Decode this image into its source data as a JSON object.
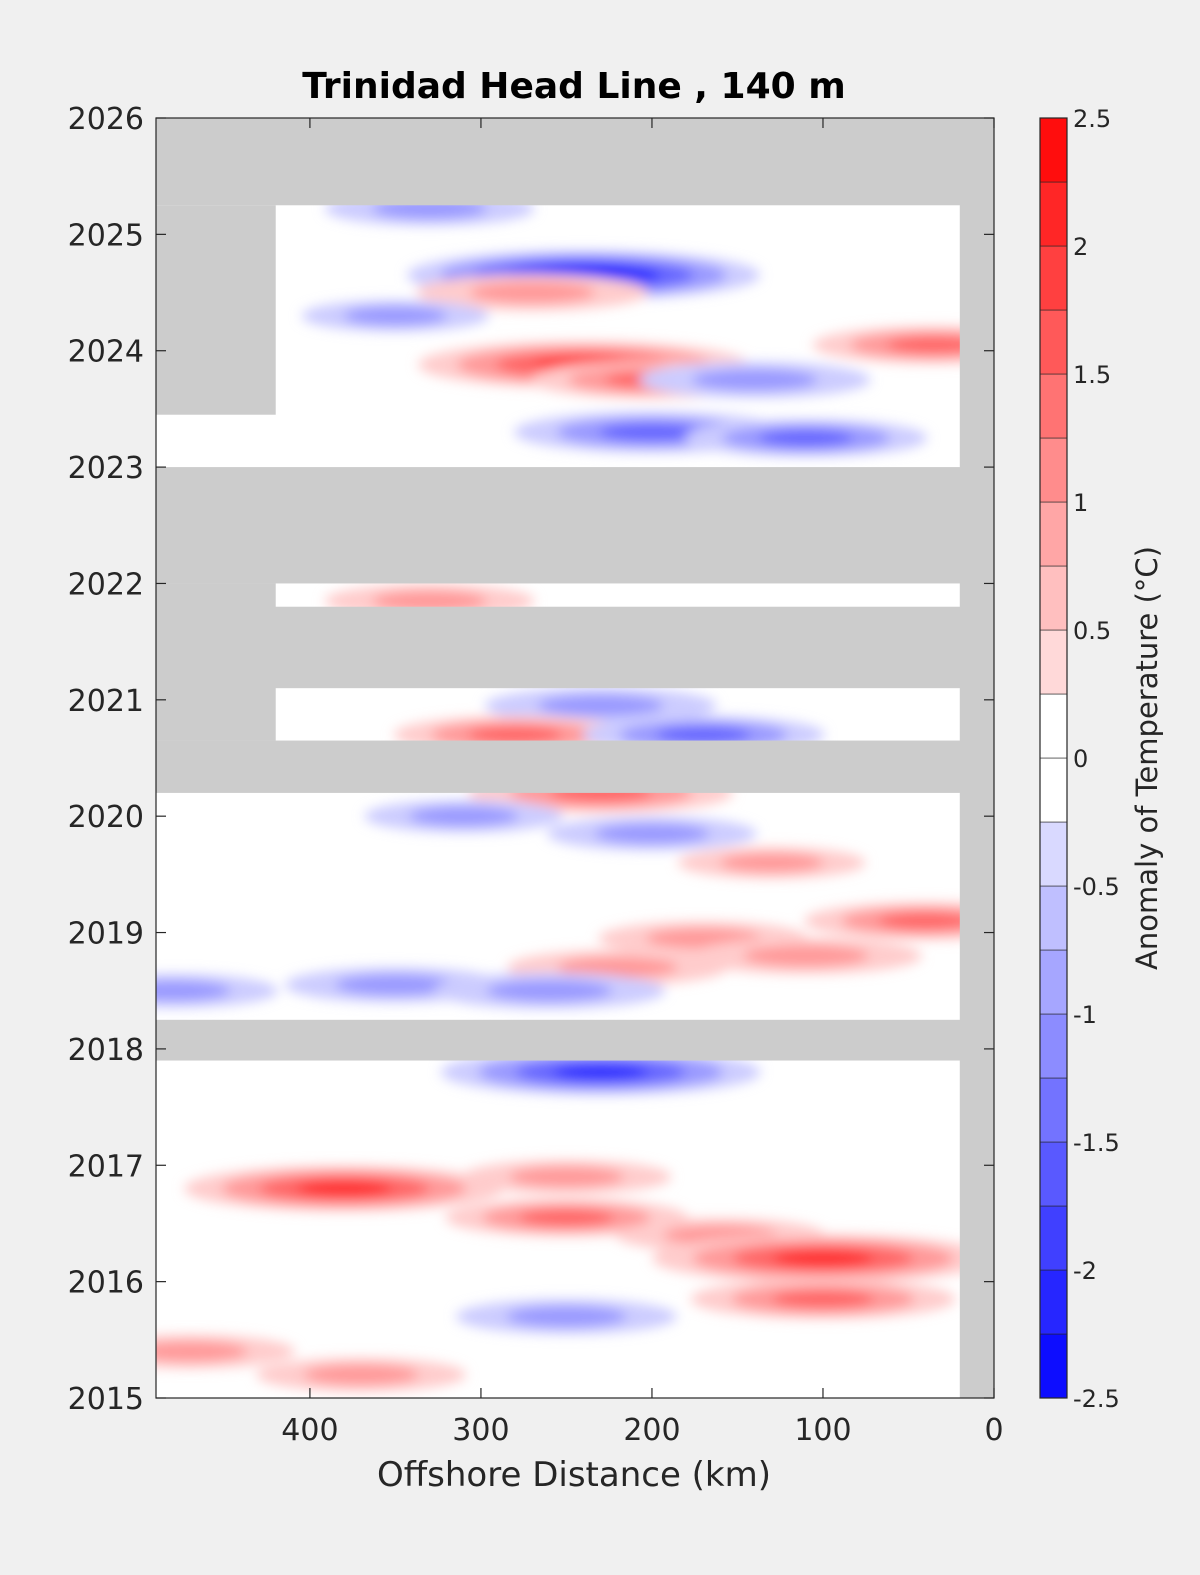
{
  "chart_data": {
    "type": "heatmap",
    "title": "Trinidad Head Line , 140 m",
    "xlabel": "Offshore Distance (km)",
    "ylabel": "",
    "x_reversed": true,
    "xlim": [
      490,
      0
    ],
    "ylim": [
      2015,
      2026
    ],
    "xticks": [
      400,
      300,
      200,
      100,
      0
    ],
    "yticks": [
      2015,
      2016,
      2017,
      2018,
      2019,
      2020,
      2021,
      2022,
      2023,
      2024,
      2025,
      2026
    ],
    "grid": false,
    "missing_color": "#cccccc",
    "colorbar": {
      "label": "Anomaly of Temperature (°C)",
      "min": -2.5,
      "max": 2.5,
      "step": 0.25,
      "ticks": [
        -2.5,
        -2,
        -1.5,
        -1,
        -0.5,
        0,
        0.5,
        1,
        1.5,
        2,
        2.5
      ],
      "colormap": "blue-white-red",
      "neutral_band": [
        -0.25,
        0.25
      ]
    },
    "no_data_bands": [
      {
        "time": [
          2025.25,
          2026.0
        ],
        "x": [
          490,
          0
        ]
      },
      {
        "time": [
          2022.0,
          2023.0
        ],
        "x": [
          490,
          0
        ]
      },
      {
        "time": [
          2021.1,
          2021.8
        ],
        "x": [
          490,
          0
        ]
      },
      {
        "time": [
          2020.2,
          2020.65
        ],
        "x": [
          490,
          0
        ]
      },
      {
        "time": [
          2017.9,
          2018.25
        ],
        "x": [
          490,
          0
        ]
      },
      {
        "time": [
          2023.45,
          2025.25
        ],
        "x": [
          490,
          420
        ]
      },
      {
        "time": [
          2020.65,
          2022.0
        ],
        "x": [
          490,
          420
        ]
      },
      {
        "time": [
          2015.0,
          2026.0
        ],
        "x": [
          20,
          0
        ]
      }
    ],
    "anomaly_features": [
      {
        "time": 2025.22,
        "x": 330,
        "value": -1.0
      },
      {
        "time": 2024.65,
        "x": 240,
        "value": -2.3
      },
      {
        "time": 2024.5,
        "x": 270,
        "value": 1.2
      },
      {
        "time": 2024.3,
        "x": 350,
        "value": -0.8
      },
      {
        "time": 2024.05,
        "x": 35,
        "value": 1.3
      },
      {
        "time": 2023.88,
        "x": 240,
        "value": 2.1
      },
      {
        "time": 2023.75,
        "x": 200,
        "value": 1.3
      },
      {
        "time": 2023.75,
        "x": 140,
        "value": -1.2
      },
      {
        "time": 2023.3,
        "x": 200,
        "value": -1.6
      },
      {
        "time": 2023.25,
        "x": 110,
        "value": -1.3
      },
      {
        "time": 2021.85,
        "x": 330,
        "value": 1.0
      },
      {
        "time": 2020.95,
        "x": 230,
        "value": -1.2
      },
      {
        "time": 2020.7,
        "x": 280,
        "value": 1.3
      },
      {
        "time": 2020.7,
        "x": 170,
        "value": -1.3
      },
      {
        "time": 2020.2,
        "x": 230,
        "value": 1.5
      },
      {
        "time": 2020.0,
        "x": 310,
        "value": -0.9
      },
      {
        "time": 2019.85,
        "x": 200,
        "value": -1.0
      },
      {
        "time": 2019.6,
        "x": 130,
        "value": 0.8
      },
      {
        "time": 2019.1,
        "x": 40,
        "value": 1.3
      },
      {
        "time": 2018.95,
        "x": 170,
        "value": 1.0
      },
      {
        "time": 2018.7,
        "x": 220,
        "value": 1.1
      },
      {
        "time": 2018.8,
        "x": 110,
        "value": 1.2
      },
      {
        "time": 2018.55,
        "x": 350,
        "value": -1.1
      },
      {
        "time": 2018.5,
        "x": 260,
        "value": -1.2
      },
      {
        "time": 2018.5,
        "x": 480,
        "value": -1.0
      },
      {
        "time": 2017.8,
        "x": 230,
        "value": -2.0
      },
      {
        "time": 2016.8,
        "x": 380,
        "value": 2.0
      },
      {
        "time": 2016.9,
        "x": 250,
        "value": 1.0
      },
      {
        "time": 2016.55,
        "x": 250,
        "value": 1.3
      },
      {
        "time": 2016.4,
        "x": 160,
        "value": 1.0
      },
      {
        "time": 2016.2,
        "x": 100,
        "value": 2.2
      },
      {
        "time": 2015.85,
        "x": 100,
        "value": 1.5
      },
      {
        "time": 2015.7,
        "x": 250,
        "value": -1.1
      },
      {
        "time": 2015.4,
        "x": 470,
        "value": 1.0
      },
      {
        "time": 2015.2,
        "x": 370,
        "value": 1.0
      }
    ]
  }
}
